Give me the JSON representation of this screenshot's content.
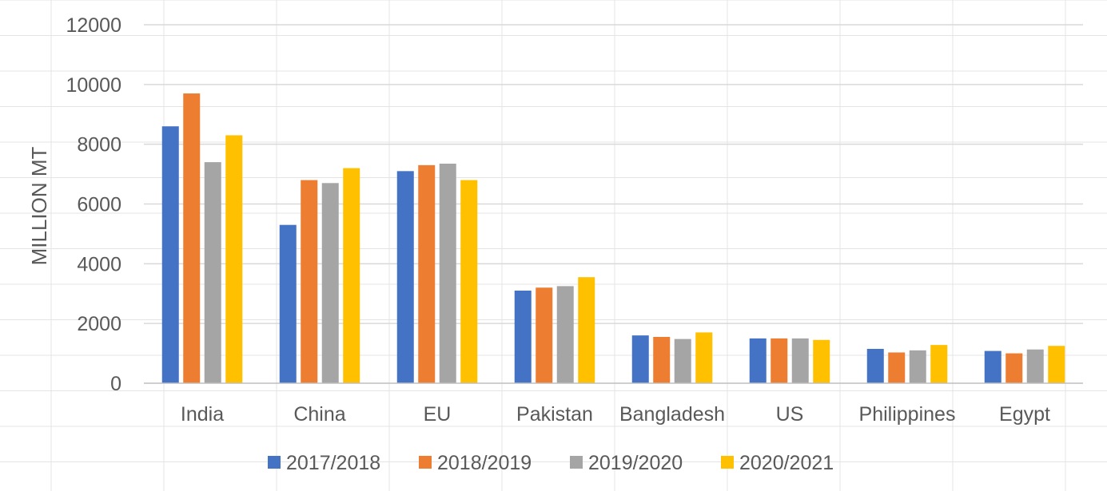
{
  "chart_data": {
    "type": "bar",
    "title": "",
    "xlabel": "",
    "ylabel": "MILLION MT",
    "ylim": [
      0,
      12000
    ],
    "yticks": [
      0,
      2000,
      4000,
      6000,
      8000,
      10000,
      12000
    ],
    "grid": true,
    "legend": "bottom",
    "categories": [
      "India",
      "China",
      "EU",
      "Pakistan",
      "Bangladesh",
      "US",
      "Philippines",
      "Egypt"
    ],
    "series": [
      {
        "name": "2017/2018",
        "color": "#4472c4",
        "values": [
          8600,
          5300,
          7100,
          3100,
          1600,
          1500,
          1150,
          1080
        ]
      },
      {
        "name": "2018/2019",
        "color": "#ed7d31",
        "values": [
          9700,
          6800,
          7300,
          3200,
          1550,
          1500,
          1030,
          1000
        ]
      },
      {
        "name": "2019/2020",
        "color": "#a5a5a5",
        "values": [
          7400,
          6700,
          7350,
          3250,
          1480,
          1500,
          1100,
          1130
        ]
      },
      {
        "name": "2020/2021",
        "color": "#ffc000",
        "values": [
          8300,
          7200,
          6800,
          3550,
          1700,
          1450,
          1280,
          1250
        ]
      }
    ]
  }
}
